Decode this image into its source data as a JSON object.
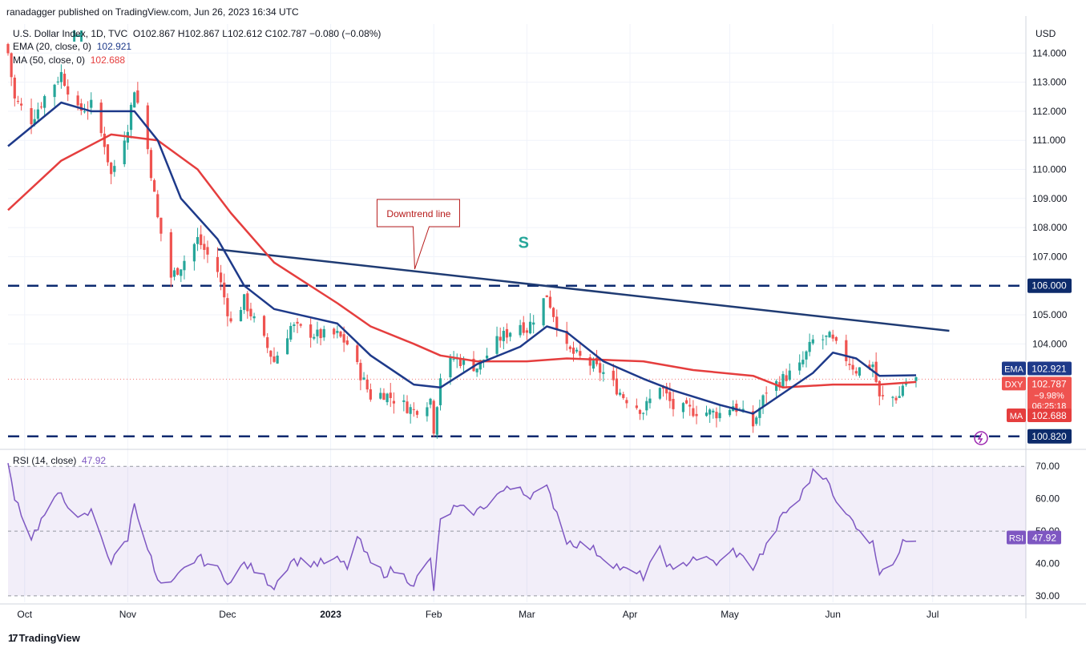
{
  "header": {
    "published": "ranadagger published on TradingView.com, Jun 26, 2023 16:34 UTC"
  },
  "legend": {
    "symbol": "U.S. Dollar Index, 1D, TVC",
    "ohlc": "O102.867  H102.867  L102.612  C102.787  −0.080 (−0.08%)",
    "ema": "EMA (20, close, 0)",
    "ema_value": "102.921",
    "ma": "MA (50, close, 0)",
    "ma_value": "102.688",
    "rsi": "RSI (14, close)",
    "rsi_value": "47.92"
  },
  "colors": {
    "up": "#26a69a",
    "down": "#ef5350",
    "ema": "#1e3a8a",
    "ma": "#e53e3e",
    "rsi": "#7e57c2",
    "trend": "#1f3b73",
    "level": "#0b2a6f"
  },
  "footer": {
    "brand": "TradingView"
  },
  "chart_data": {
    "type": "candlestick",
    "currency": "USD",
    "price_axis": {
      "ticks": [
        "114.000",
        "113.000",
        "112.000",
        "111.000",
        "110.000",
        "109.000",
        "108.000",
        "107.000",
        "105.000",
        "104.000"
      ],
      "range": [
        100.4,
        115.0
      ]
    },
    "time_axis": {
      "labels": [
        "Oct",
        "Nov",
        "Dec",
        "2023",
        "Feb",
        "Mar",
        "Apr",
        "May",
        "Jun",
        "Jul"
      ]
    },
    "annotations": {
      "head_label": "H",
      "shoulder_label": "S",
      "callout": "Downtrend line"
    },
    "horizontal_levels": [
      {
        "value": 106.0,
        "label": "106.000"
      },
      {
        "value": 100.82,
        "label": "100.820"
      }
    ],
    "trendline": {
      "from": [
        "Nov 28",
        107.25
      ],
      "to": [
        "Jul 6",
        104.45
      ]
    },
    "price_badges": [
      {
        "name": "EMA",
        "value": "102.921"
      },
      {
        "name": "DXY",
        "value": "102.787",
        "change": "−9.98%",
        "countdown": "06:25:18"
      },
      {
        "name": "MA",
        "value": "102.688"
      }
    ],
    "close_anchors": [
      [
        "Sep 26",
        114.0
      ],
      [
        "Sep 28",
        112.4
      ],
      [
        "Oct 3",
        111.7
      ],
      [
        "Oct 7",
        112.5
      ],
      [
        "Oct 12",
        113.3
      ],
      [
        "Oct 17",
        112.0
      ],
      [
        "Oct 21",
        112.2
      ],
      [
        "Oct 25",
        110.9
      ],
      [
        "Oct 27",
        109.8
      ],
      [
        "Nov 1",
        111.5
      ],
      [
        "Nov 3",
        112.8
      ],
      [
        "Nov 7",
        110.7
      ],
      [
        "Nov 10",
        108.3
      ],
      [
        "Nov 14",
        106.3
      ],
      [
        "Nov 17",
        106.7
      ],
      [
        "Nov 22",
        107.6
      ],
      [
        "Nov 28",
        106.5
      ],
      [
        "Dec 2",
        104.7
      ],
      [
        "Dec 6",
        105.5
      ],
      [
        "Dec 9",
        104.8
      ],
      [
        "Dec 15",
        103.4
      ],
      [
        "Dec 20",
        104.6
      ],
      [
        "Dec 28",
        104.3
      ],
      [
        "Jan 3",
        104.3
      ],
      [
        "Jan 6",
        104.0
      ],
      [
        "Jan 9",
        103.2
      ],
      [
        "Jan 13",
        102.2
      ],
      [
        "Jan 17",
        102.3
      ],
      [
        "Jan 20",
        102.1
      ],
      [
        "Jan 26",
        101.7
      ],
      [
        "Jan 31",
        102.1
      ],
      [
        "Feb 1",
        101.1
      ],
      [
        "Feb 3",
        102.9
      ],
      [
        "Feb 7",
        103.5
      ],
      [
        "Feb 14",
        103.2
      ],
      [
        "Feb 21",
        104.2
      ],
      [
        "Feb 27",
        104.7
      ],
      [
        "Mar 1",
        104.5
      ],
      [
        "Mar 7",
        105.7
      ],
      [
        "Mar 10",
        104.7
      ],
      [
        "Mar 13",
        103.8
      ],
      [
        "Mar 20",
        103.3
      ],
      [
        "Mar 24",
        103.0
      ],
      [
        "Mar 30",
        102.2
      ],
      [
        "Apr 5",
        101.7
      ],
      [
        "Apr 10",
        102.6
      ],
      [
        "Apr 14",
        101.8
      ],
      [
        "Apr 20",
        101.7
      ],
      [
        "Apr 28",
        101.6
      ],
      [
        "May 2",
        101.9
      ],
      [
        "May 8",
        101.2
      ],
      [
        "May 12",
        102.4
      ],
      [
        "May 17",
        102.8
      ],
      [
        "May 22",
        103.2
      ],
      [
        "May 26",
        104.1
      ],
      [
        "May 31",
        104.2
      ],
      [
        "Jun 2",
        103.9
      ],
      [
        "Jun 8",
        103.1
      ],
      [
        "Jun 13",
        103.3
      ],
      [
        "Jun 15",
        102.1
      ],
      [
        "Jun 21",
        102.2
      ],
      [
        "Jun 22",
        102.6
      ],
      [
        "Jun 26",
        102.787
      ]
    ],
    "ema20": [
      [
        "Sep 26",
        110.8
      ],
      [
        "Oct 12",
        112.3
      ],
      [
        "Oct 21",
        112.0
      ],
      [
        "Nov 3",
        112.0
      ],
      [
        "Nov 10",
        111.0
      ],
      [
        "Nov 17",
        109.0
      ],
      [
        "Nov 28",
        107.6
      ],
      [
        "Dec 6",
        106.0
      ],
      [
        "Dec 15",
        105.2
      ],
      [
        "Jan 3",
        104.7
      ],
      [
        "Jan 13",
        103.6
      ],
      [
        "Jan 26",
        102.6
      ],
      [
        "Feb 3",
        102.5
      ],
      [
        "Feb 14",
        103.3
      ],
      [
        "Feb 27",
        103.9
      ],
      [
        "Mar 7",
        104.6
      ],
      [
        "Mar 13",
        104.4
      ],
      [
        "Mar 24",
        103.4
      ],
      [
        "Apr 5",
        102.8
      ],
      [
        "Apr 14",
        102.4
      ],
      [
        "Apr 28",
        101.9
      ],
      [
        "May 8",
        101.6
      ],
      [
        "May 17",
        102.3
      ],
      [
        "May 26",
        103.0
      ],
      [
        "Jun 1",
        103.7
      ],
      [
        "Jun 8",
        103.5
      ],
      [
        "Jun 15",
        102.9
      ],
      [
        "Jun 26",
        102.921
      ]
    ],
    "ma50": [
      [
        "Sep 26",
        108.6
      ],
      [
        "Oct 12",
        110.3
      ],
      [
        "Oct 27",
        111.2
      ],
      [
        "Nov 10",
        111.0
      ],
      [
        "Nov 22",
        110.0
      ],
      [
        "Dec 2",
        108.5
      ],
      [
        "Dec 15",
        106.8
      ],
      [
        "Jan 3",
        105.4
      ],
      [
        "Jan 13",
        104.6
      ],
      [
        "Jan 26",
        104.0
      ],
      [
        "Feb 3",
        103.6
      ],
      [
        "Feb 14",
        103.4
      ],
      [
        "Mar 1",
        103.4
      ],
      [
        "Mar 13",
        103.5
      ],
      [
        "Apr 5",
        103.4
      ],
      [
        "Apr 20",
        103.1
      ],
      [
        "May 8",
        102.9
      ],
      [
        "May 17",
        102.5
      ],
      [
        "Jun 1",
        102.6
      ],
      [
        "Jun 15",
        102.6
      ],
      [
        "Jun 26",
        102.688
      ]
    ],
    "rsi": {
      "levels": [
        70.0,
        50.0,
        30.0
      ],
      "ticks": [
        "70.00",
        "60.00",
        "50.00",
        "40.00",
        "30.00"
      ],
      "current": "47.92",
      "points": [
        [
          "Sep 26",
          70
        ],
        [
          "Sep 28",
          61
        ],
        [
          "Oct 3",
          48
        ],
        [
          "Oct 7",
          55
        ],
        [
          "Oct 12",
          62
        ],
        [
          "Oct 17",
          53
        ],
        [
          "Oct 21",
          56
        ],
        [
          "Oct 25",
          46
        ],
        [
          "Oct 27",
          40
        ],
        [
          "Nov 1",
          48
        ],
        [
          "Nov 3",
          59
        ],
        [
          "Nov 7",
          45
        ],
        [
          "Nov 10",
          34
        ],
        [
          "Nov 14",
          33
        ],
        [
          "Nov 17",
          37
        ],
        [
          "Nov 22",
          42
        ],
        [
          "Nov 28",
          38
        ],
        [
          "Dec 2",
          34
        ],
        [
          "Dec 6",
          40
        ],
        [
          "Dec 9",
          38
        ],
        [
          "Dec 15",
          33
        ],
        [
          "Dec 20",
          41
        ],
        [
          "Dec 28",
          40
        ],
        [
          "Jan 3",
          41
        ],
        [
          "Jan 6",
          39
        ],
        [
          "Jan 9",
          48
        ],
        [
          "Jan 13",
          40
        ],
        [
          "Jan 17",
          37
        ],
        [
          "Jan 20",
          38
        ],
        [
          "Jan 26",
          34
        ],
        [
          "Jan 31",
          41
        ],
        [
          "Feb 1",
          32
        ],
        [
          "Feb 3",
          53
        ],
        [
          "Feb 7",
          57
        ],
        [
          "Feb 14",
          56
        ],
        [
          "Feb 21",
          62
        ],
        [
          "Feb 27",
          64
        ],
        [
          "Mar 1",
          61
        ],
        [
          "Mar 7",
          63
        ],
        [
          "Mar 10",
          56
        ],
        [
          "Mar 13",
          47
        ],
        [
          "Mar 20",
          45
        ],
        [
          "Mar 24",
          42
        ],
        [
          "Mar 30",
          38
        ],
        [
          "Apr 5",
          36
        ],
        [
          "Apr 10",
          44
        ],
        [
          "Apr 14",
          37
        ],
        [
          "Apr 20",
          42
        ],
        [
          "Apr 28",
          40
        ],
        [
          "May 2",
          44
        ],
        [
          "May 8",
          39
        ],
        [
          "May 12",
          45
        ],
        [
          "May 17",
          55
        ],
        [
          "May 22",
          60
        ],
        [
          "May 26",
          68
        ],
        [
          "May 31",
          66
        ],
        [
          "Jun 2",
          58
        ],
        [
          "Jun 8",
          52
        ],
        [
          "Jun 13",
          46
        ],
        [
          "Jun 15",
          38
        ],
        [
          "Jun 21",
          42
        ],
        [
          "Jun 22",
          48
        ],
        [
          "Jun 26",
          47.92
        ]
      ]
    }
  }
}
